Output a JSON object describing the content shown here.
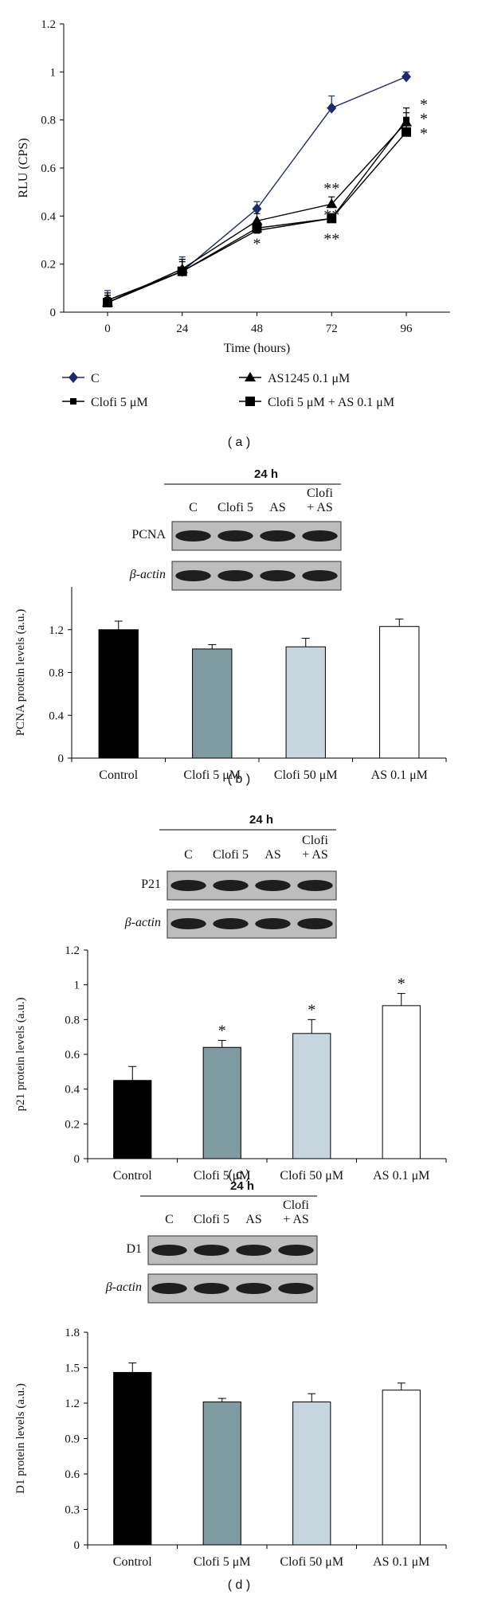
{
  "chart_data": [
    {
      "type": "line",
      "panel": "( a )",
      "xlabel": "Time (hours)",
      "ylabel": "RLU (CPS)",
      "x": [
        0,
        24,
        48,
        72,
        96
      ],
      "x_ticks": [
        "0",
        "24",
        "48",
        "72",
        "96"
      ],
      "ylim": [
        0,
        1.2
      ],
      "y_ticks": [
        "0",
        "0.2",
        "0.4",
        "0.6",
        "0.8",
        "1",
        "1.2"
      ],
      "legend_position": "bottom",
      "series": [
        {
          "name": "C",
          "marker": "diamond",
          "color": "#1f2a6b",
          "values": [
            0.05,
            0.17,
            0.43,
            0.85,
            0.98
          ],
          "errors": [
            0.04,
            0.06,
            0.03,
            0.05,
            0.02
          ]
        },
        {
          "name": "Clofi 5 μM",
          "marker": "square-small",
          "color": "#000000",
          "values": [
            0.05,
            0.17,
            0.34,
            0.39,
            0.8
          ],
          "errors": [
            0.03,
            0.05,
            0.03,
            0.02,
            0.05
          ]
        },
        {
          "name": "AS1245 0.1 μM",
          "marker": "triangle",
          "color": "#000000",
          "values": [
            0.04,
            0.18,
            0.38,
            0.45,
            0.79
          ],
          "errors": [
            0.03,
            0.04,
            0.03,
            0.03,
            0.04
          ]
        },
        {
          "name": "Clofi 5 μM + AS 0.1 μM",
          "marker": "square",
          "color": "#000000",
          "values": [
            0.04,
            0.17,
            0.35,
            0.39,
            0.75
          ],
          "errors": [
            0.03,
            0.04,
            0.03,
            0.02,
            0.04
          ]
        }
      ],
      "annotations": [
        {
          "x": 48,
          "y": 0.29,
          "text": "*"
        },
        {
          "x": 72,
          "y": 0.52,
          "text": "**"
        },
        {
          "x": 72,
          "y": 0.41,
          "text": "**"
        },
        {
          "x": 72,
          "y": 0.31,
          "text": "**"
        },
        {
          "x": 96,
          "y": 0.87,
          "text": "*"
        },
        {
          "x": 96,
          "y": 0.81,
          "text": "*"
        },
        {
          "x": 96,
          "y": 0.75,
          "text": "*"
        }
      ]
    },
    {
      "type": "bar",
      "panel": "( b )",
      "ylabel": "PCNA protein levels (a.u.)",
      "categories": [
        "Control",
        "Clofi 5 μM",
        "Clofi 50 μM",
        "AS 0.1 μM"
      ],
      "values": [
        1.2,
        1.02,
        1.04,
        1.23
      ],
      "errors": [
        0.08,
        0.04,
        0.08,
        0.07
      ],
      "bar_colors": [
        "#000000",
        "#7f9aa0",
        "#c7d6de",
        "#ffffff"
      ],
      "ylim": [
        0,
        1.6
      ],
      "y_ticks": [
        "0",
        "0.4",
        "0.8",
        "1.2"
      ],
      "blot": {
        "time": "24 h",
        "lanes": [
          "C",
          "Clofi 5",
          "AS",
          "Clofi\n+ AS"
        ],
        "rows": [
          "PCNA",
          "β-actin"
        ]
      }
    },
    {
      "type": "bar",
      "panel": "( c )",
      "ylabel": "p21 protein levels (a.u.)",
      "categories": [
        "Control",
        "Clofi 5 μM",
        "Clofi 50 μM",
        "AS 0.1 μM"
      ],
      "values": [
        0.45,
        0.64,
        0.72,
        0.88
      ],
      "errors": [
        0.08,
        0.04,
        0.08,
        0.07
      ],
      "significance": [
        "",
        "*",
        "*",
        "*"
      ],
      "bar_colors": [
        "#000000",
        "#7f9aa0",
        "#c7d6de",
        "#ffffff"
      ],
      "ylim": [
        0,
        1.2
      ],
      "y_ticks": [
        "0",
        "0.2",
        "0.4",
        "0.6",
        "0.8",
        "1",
        "1.2"
      ],
      "blot": {
        "time": "24 h",
        "lanes": [
          "C",
          "Clofi 5",
          "AS",
          "Clofi\n+ AS"
        ],
        "rows": [
          "P21",
          "β-actin"
        ]
      }
    },
    {
      "type": "bar",
      "panel": "( d )",
      "ylabel": "D1 protein levels (a.u.)",
      "categories": [
        "Control",
        "Clofi 5 μM",
        "Clofi 50 μM",
        "AS 0.1 μM"
      ],
      "values": [
        1.46,
        1.21,
        1.21,
        1.31
      ],
      "errors": [
        0.08,
        0.03,
        0.07,
        0.06
      ],
      "bar_colors": [
        "#000000",
        "#7f9aa0",
        "#c7d6de",
        "#ffffff"
      ],
      "ylim": [
        0,
        1.8
      ],
      "y_ticks": [
        "0",
        "0.3",
        "0.6",
        "0.9",
        "1.2",
        "1.5",
        "1.8"
      ],
      "blot": {
        "time": "24 h",
        "lanes": [
          "C",
          "Clofi 5",
          "AS",
          "Clofi\n+ AS"
        ],
        "rows": [
          "D1",
          "β-actin"
        ]
      }
    }
  ]
}
